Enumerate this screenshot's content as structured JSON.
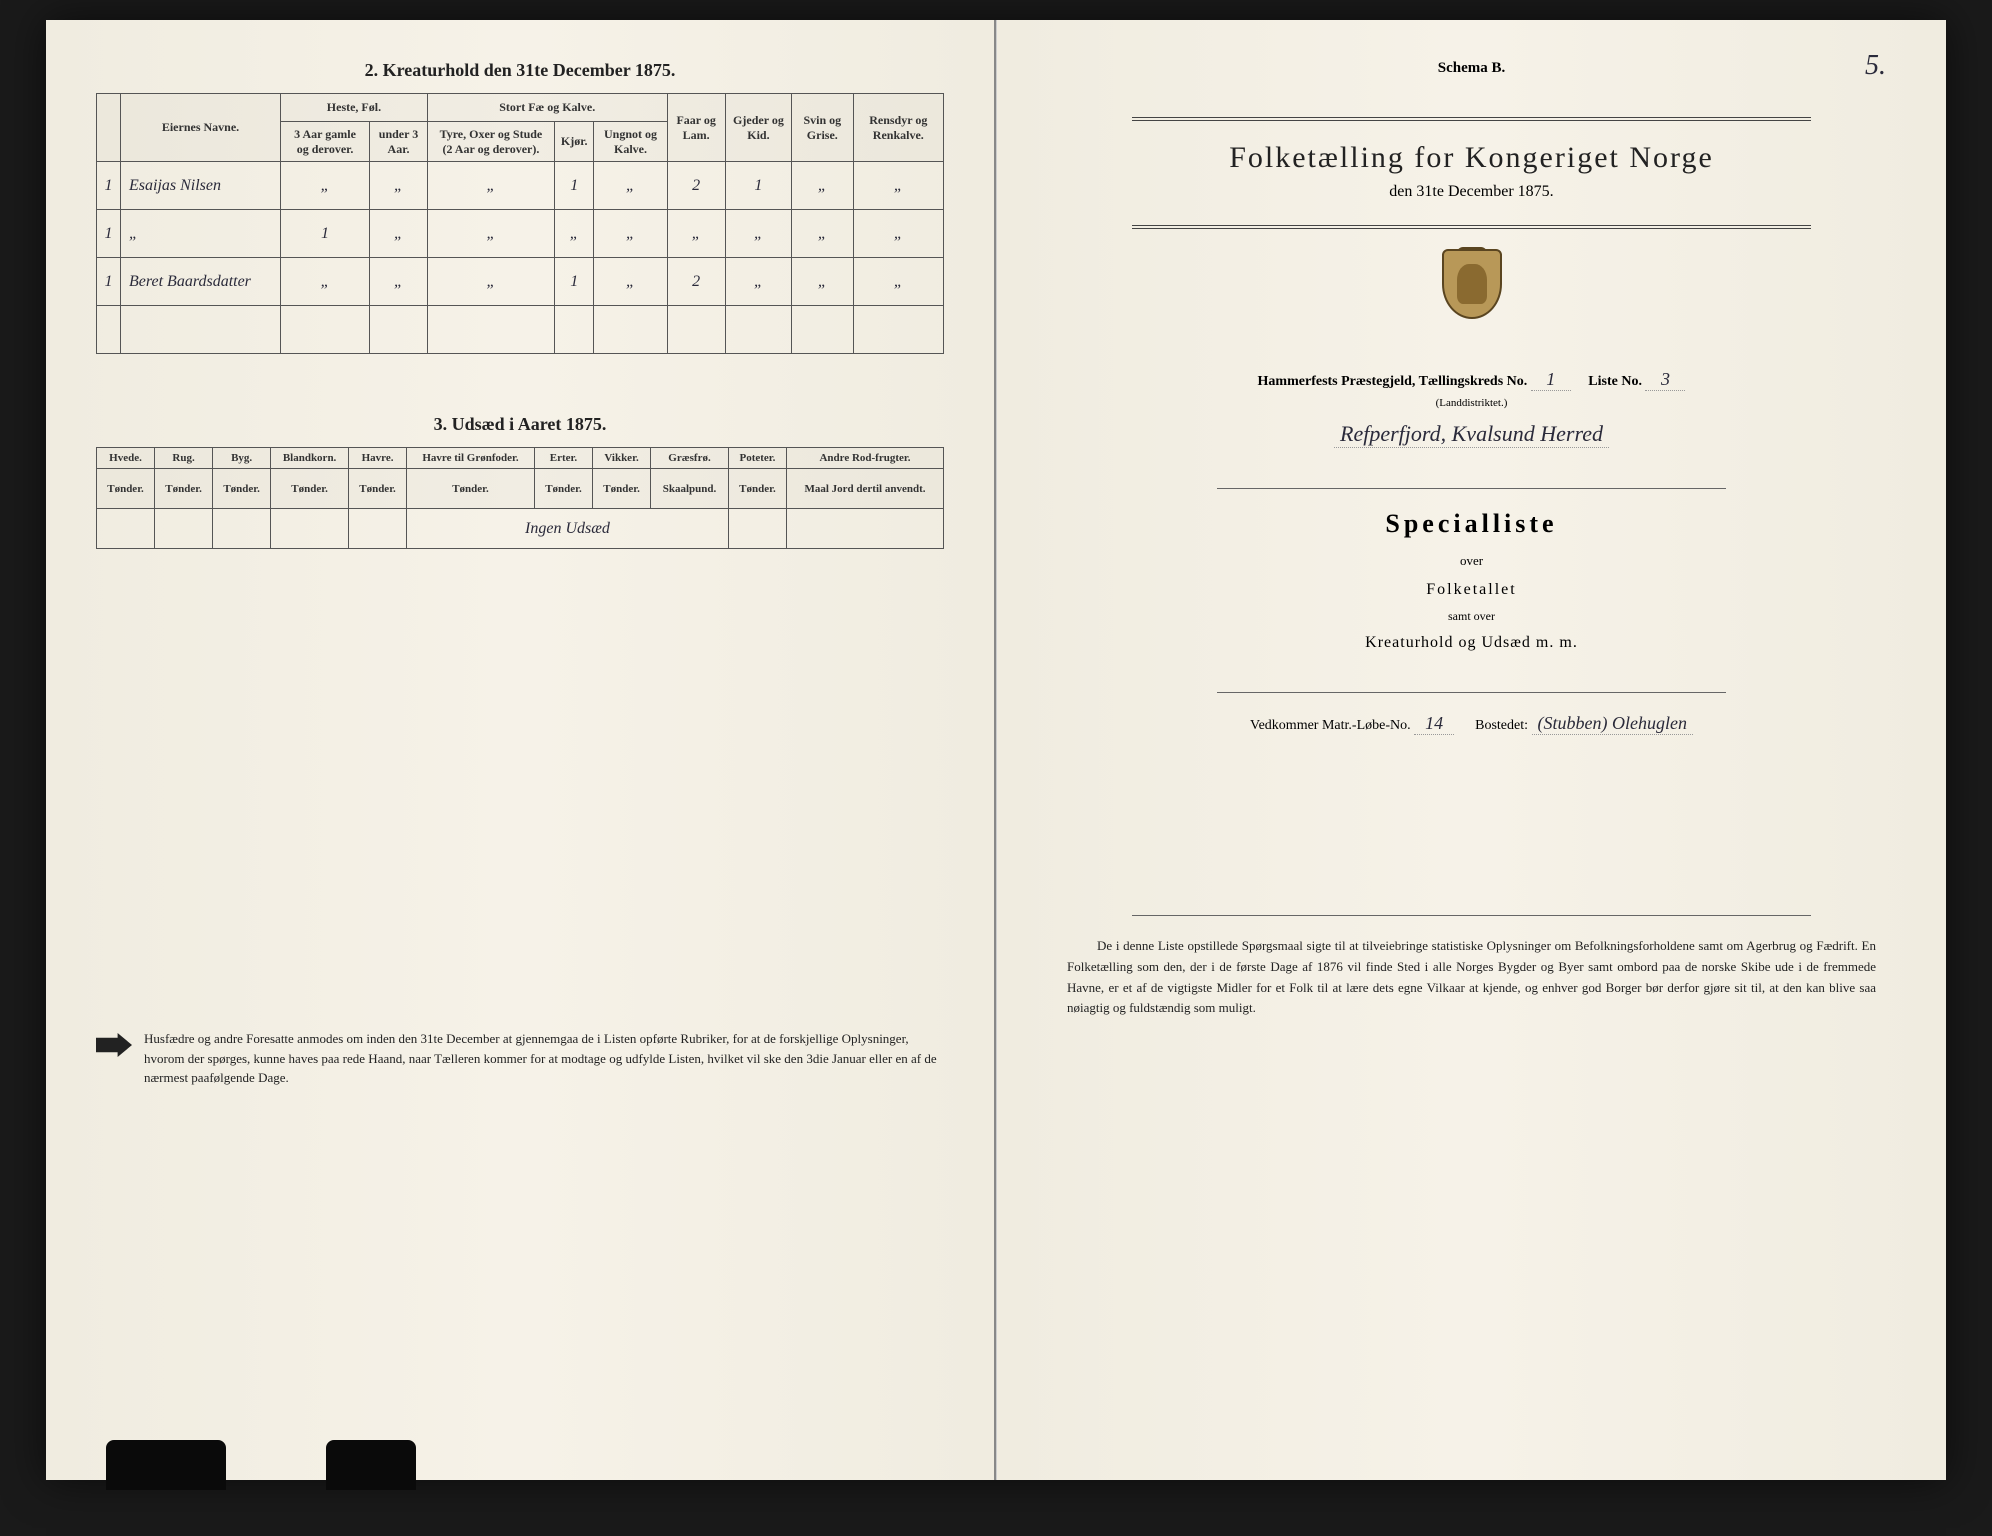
{
  "left": {
    "section2_title": "2. Kreaturhold den 31te December 1875.",
    "table2": {
      "headers_main": [
        "",
        "Eiernes Navne.",
        "Heste, Føl.",
        "Stort Fæ og Kalve.",
        "Faar og Lam.",
        "Gjeder og Kid.",
        "Svin og Grise.",
        "Rensdyr og Renkalve."
      ],
      "headers_sub": [
        "",
        "",
        "3 Aar gamle og derover.",
        "under 3 Aar.",
        "Tyre, Oxer og Stude (2 Aar og derover).",
        "Kjør.",
        "Ungnot og Kalve.",
        "",
        "",
        "",
        ""
      ],
      "rows": [
        {
          "num": "1",
          "name": "Esaijas Nilsen",
          "cells": [
            "„",
            "„",
            "„",
            "1",
            "„",
            "2",
            "1",
            "„",
            "„"
          ]
        },
        {
          "num": "1",
          "name": "„",
          "cells": [
            "1",
            "„",
            "„",
            "„",
            "„",
            "„",
            "„",
            "„",
            "„"
          ]
        },
        {
          "num": "1",
          "name": "Beret Baardsdatter",
          "cells": [
            "„",
            "„",
            "„",
            "1",
            "„",
            "2",
            "„",
            "„",
            "„"
          ]
        }
      ]
    },
    "section3_title": "3. Udsæd i Aaret 1875.",
    "table3": {
      "headers_main": [
        "Hvede.",
        "Rug.",
        "Byg.",
        "Blandkorn.",
        "Havre.",
        "Havre til Grønfoder.",
        "Erter.",
        "Vikker.",
        "Græsfrø.",
        "Poteter.",
        "Andre Rod-frugter."
      ],
      "headers_sub": [
        "Tønder.",
        "Tønder.",
        "Tønder.",
        "Tønder.",
        "Tønder.",
        "Tønder.",
        "Tønder.",
        "Tønder.",
        "Skaalpund.",
        "Tønder.",
        "Maal Jord dertil anvendt."
      ],
      "entry": "Ingen Udsæd"
    },
    "notice": "Husfædre og andre Foresatte anmodes om inden den 31te December at gjennemgaa de i Listen opførte Rubriker, for at de forskjellige Oplysninger, hvorom der spørges, kunne haves paa rede Haand, naar Tælleren kommer for at modtage og udfylde Listen, hvilket vil ske den 3die Januar eller en af de nærmest paafølgende Dage."
  },
  "right": {
    "page_number": "5.",
    "schema": "Schema B.",
    "main_title": "Folketælling for Kongeriget Norge",
    "subtitle": "den 31te December 1875.",
    "parish_label": "Hammerfests Præstegjeld, Tællingskreds No.",
    "parish_sub": "(Landdistriktet.)",
    "kreds_no": "1",
    "liste_label": "Liste No.",
    "liste_no": "3",
    "location": "Refperfjord, Kvalsund Herred",
    "special_title": "Specialliste",
    "over": "over",
    "folketallet": "Folketallet",
    "samt": "samt over",
    "kreatur": "Kreaturhold og Udsæd m. m.",
    "matr_label": "Vedkommer Matr.-Løbe-No.",
    "matr_no": "14",
    "bosted_label": "Bostedet:",
    "bosted": "(Stubben) Olehuglen",
    "bottom": "De i denne Liste opstillede Spørgsmaal sigte til at tilveiebringe statistiske Oplysninger om Befolkningsforholdene samt om Agerbrug og Fædrift. En Folketælling som den, der i de første Dage af 1876 vil finde Sted i alle Norges Bygder og Byer samt ombord paa de norske Skibe ude i de fremmede Havne, er et af de vigtigste Midler for et Folk til at lære dets egne Vilkaar at kjende, og enhver god Borger bør derfor gjøre sit til, at den kan blive saa nøiagtig og fuldstændig som muligt."
  }
}
